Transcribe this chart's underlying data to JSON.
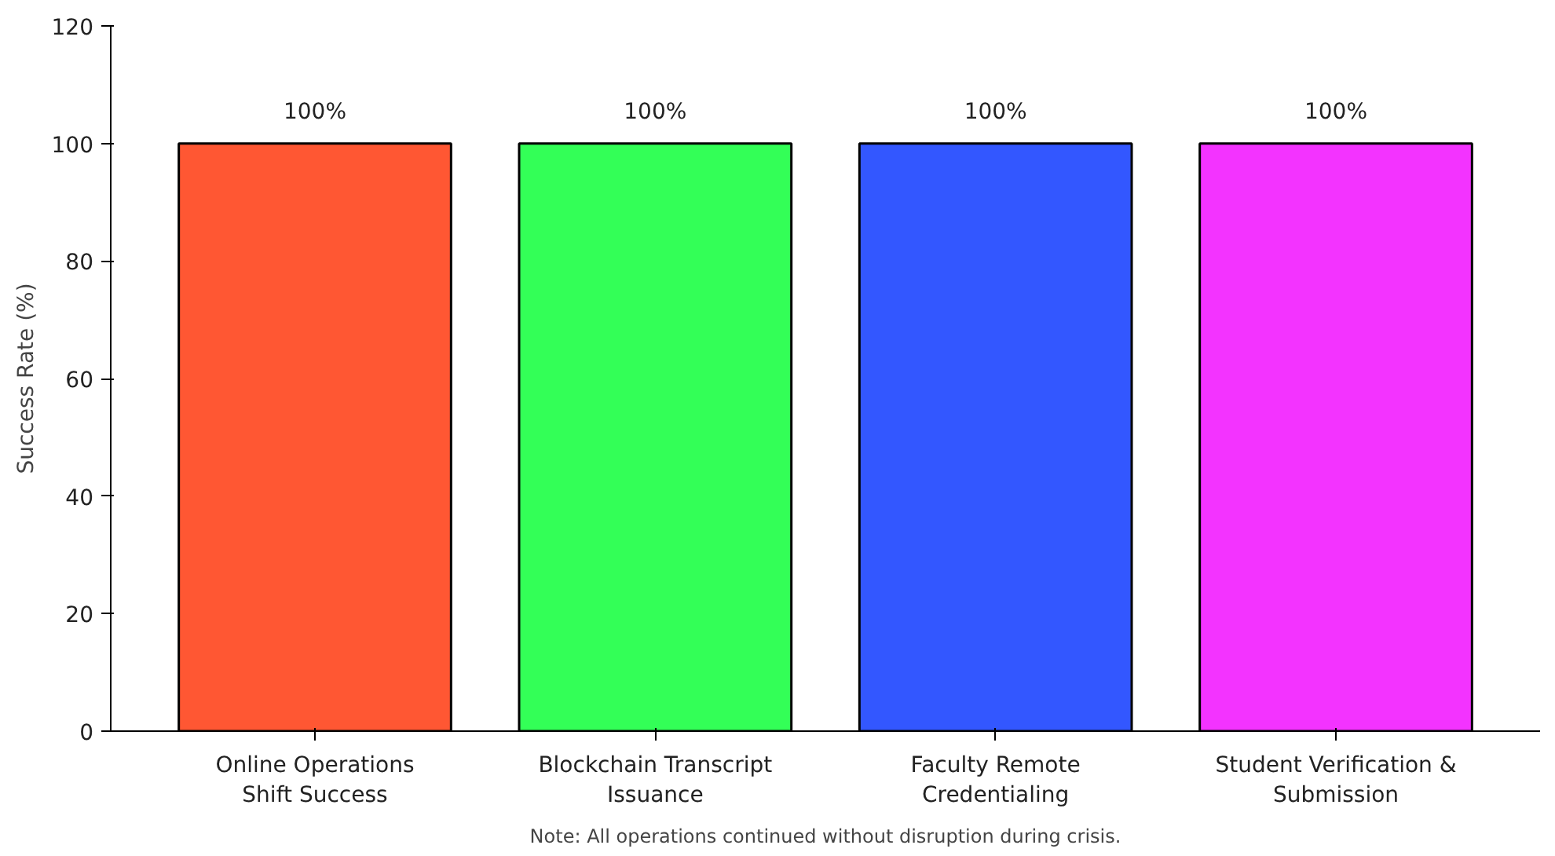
{
  "chart_data": {
    "type": "bar",
    "ylabel": "Success Rate (%)",
    "categories": [
      "Online Operations\nShift Success",
      "Blockchain Transcript\nIssuance",
      "Faculty Remote\nCredentialing",
      "Student Verification &\nSubmission"
    ],
    "values": [
      100,
      100,
      100,
      100
    ],
    "colors": [
      "#ff5733",
      "#33ff57",
      "#3357ff",
      "#f333ff"
    ],
    "value_labels": [
      "100%",
      "100%",
      "100%",
      "100%"
    ],
    "ylim": [
      0,
      120
    ],
    "yticks": [
      0,
      20,
      40,
      60,
      80,
      100,
      120
    ],
    "grid": false,
    "annotations": [
      "Note: All operations continued without disruption during crisis."
    ]
  }
}
